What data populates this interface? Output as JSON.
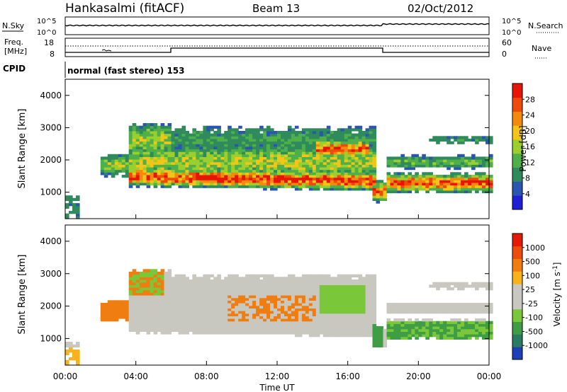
{
  "header": {
    "station": "Hankasalmi (fitACF)",
    "beam": "Beam 13",
    "date": "02/Oct/2012"
  },
  "panel_labels": {
    "nsky": "N.Sky",
    "nsearch": "N.Search",
    "freq": "Freq.",
    "freq_unit": "[MHz]",
    "nave": "Nave",
    "cpid": "CPID",
    "cpid_text": "normal (fast stereo) 153"
  },
  "noise_axis": {
    "top": "10^5",
    "bottom": "10^0"
  },
  "freq_axis": {
    "top": "18",
    "bottom": "8"
  },
  "nave_axis": {
    "top": "60",
    "bottom": "0"
  },
  "chart_data": [
    {
      "type": "heatmap",
      "name": "power",
      "ylabel": "Slant Range [km]",
      "ylim": [
        180,
        4500
      ],
      "y_ticks": [
        "4000",
        "3000",
        "2000",
        "1000"
      ],
      "xlim": [
        0,
        24
      ],
      "colorbar": {
        "label": "Power [dB]",
        "ticks": [
          "28",
          "24",
          "20",
          "16",
          "12",
          "8",
          "4"
        ],
        "colors": [
          "#1f1fd6",
          "#2a55b0",
          "#2f8a5c",
          "#4fb04a",
          "#9ccf2d",
          "#f2c516",
          "#f28a0e",
          "#ee4a0a",
          "#e81405"
        ]
      }
    },
    {
      "type": "heatmap",
      "name": "velocity",
      "ylabel": "Slant Range [km]",
      "ylim": [
        180,
        4500
      ],
      "y_ticks": [
        "4000",
        "3000",
        "2000",
        "1000"
      ],
      "xlim": [
        0,
        24
      ],
      "xlabel": "Time UT",
      "x_ticks": [
        "00:00",
        "04:00",
        "08:00",
        "12:00",
        "16:00",
        "20:00",
        "00:00"
      ],
      "colorbar": {
        "label": "Velocity [m s^-1]",
        "ticks": [
          "1000",
          "500",
          "100",
          "25",
          "-25",
          "-100",
          "-500",
          "-1000"
        ],
        "colors": [
          "#1f3fb8",
          "#2b7a62",
          "#3f9e45",
          "#7ac83a",
          "#c8c8c0",
          "#c8c8c0",
          "#f7b21c",
          "#f07d10",
          "#ec4d0c",
          "#e41a06"
        ]
      }
    }
  ]
}
